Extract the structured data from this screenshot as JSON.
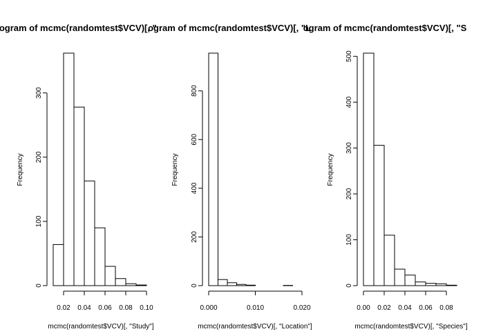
{
  "chart_data": [
    {
      "type": "bar",
      "title": "Histogram of mcmc(randomtest$VCV)[, \"Study\"]",
      "title_visible": "stogram of mcmc(randomtest$VCV)[, \"",
      "xlabel": "mcmc(randomtest$VCV)[, \"Study\"]",
      "ylabel": "Frequency",
      "bin_edges": [
        0.01,
        0.02,
        0.03,
        0.04,
        0.05,
        0.06,
        0.07,
        0.08,
        0.09,
        0.1
      ],
      "values": [
        64,
        362,
        278,
        163,
        90,
        30,
        11,
        3,
        1
      ],
      "xticks": [
        0.02,
        0.04,
        0.06,
        0.08,
        0.1
      ],
      "xtick_labels": [
        "0.02",
        "0.04",
        "0.06",
        "0.08",
        "0.10"
      ],
      "yticks": [
        0,
        100,
        200,
        300
      ],
      "ytick_labels": [
        "0",
        "100",
        "200",
        "300"
      ],
      "xlim": [
        0.01,
        0.1
      ],
      "ylim": [
        0,
        362
      ]
    },
    {
      "type": "bar",
      "title": "Histogram of mcmc(randomtest$VCV)[, \"Location\"]",
      "title_visible": "ogram of mcmc(randomtest$VCV)[, \"L",
      "xlabel": "mcmc(randomtest$VCV)[, \"Location\"]",
      "ylabel": "Frequency",
      "bin_edges": [
        0.0,
        0.002,
        0.004,
        0.006,
        0.008,
        0.01,
        0.012,
        0.014,
        0.016,
        0.018,
        0.02
      ],
      "values": [
        955,
        25,
        12,
        5,
        2,
        0,
        0,
        0,
        1,
        0
      ],
      "xticks": [
        0.0,
        0.01,
        0.02
      ],
      "xtick_labels": [
        "0.000",
        "0.010",
        "0.020"
      ],
      "yticks": [
        0,
        200,
        400,
        600,
        800
      ],
      "ytick_labels": [
        "0",
        "200",
        "400",
        "600",
        "800"
      ],
      "xlim": [
        0.0,
        0.02
      ],
      "ylim": [
        0,
        955
      ]
    },
    {
      "type": "bar",
      "title": "Histogram of mcmc(randomtest$VCV)[, \"Species\"]",
      "title_visible": "ogram of mcmc(randomtest$VCV)[, \"S",
      "xlabel": "mcmc(randomtest$VCV)[, \"Species\"]",
      "ylabel": "Frequency",
      "bin_edges": [
        0.0,
        0.01,
        0.02,
        0.03,
        0.04,
        0.05,
        0.06,
        0.07,
        0.08,
        0.09
      ],
      "values": [
        507,
        306,
        110,
        36,
        23,
        8,
        5,
        4,
        1
      ],
      "xticks": [
        0.0,
        0.02,
        0.04,
        0.06,
        0.08
      ],
      "xtick_labels": [
        "0.00",
        "0.02",
        "0.04",
        "0.06",
        "0.08"
      ],
      "yticks": [
        0,
        100,
        200,
        300,
        400,
        500
      ],
      "ytick_labels": [
        "0",
        "100",
        "200",
        "300",
        "400",
        "500"
      ],
      "xlim": [
        0.0,
        0.09
      ],
      "ylim": [
        0,
        507
      ]
    }
  ]
}
